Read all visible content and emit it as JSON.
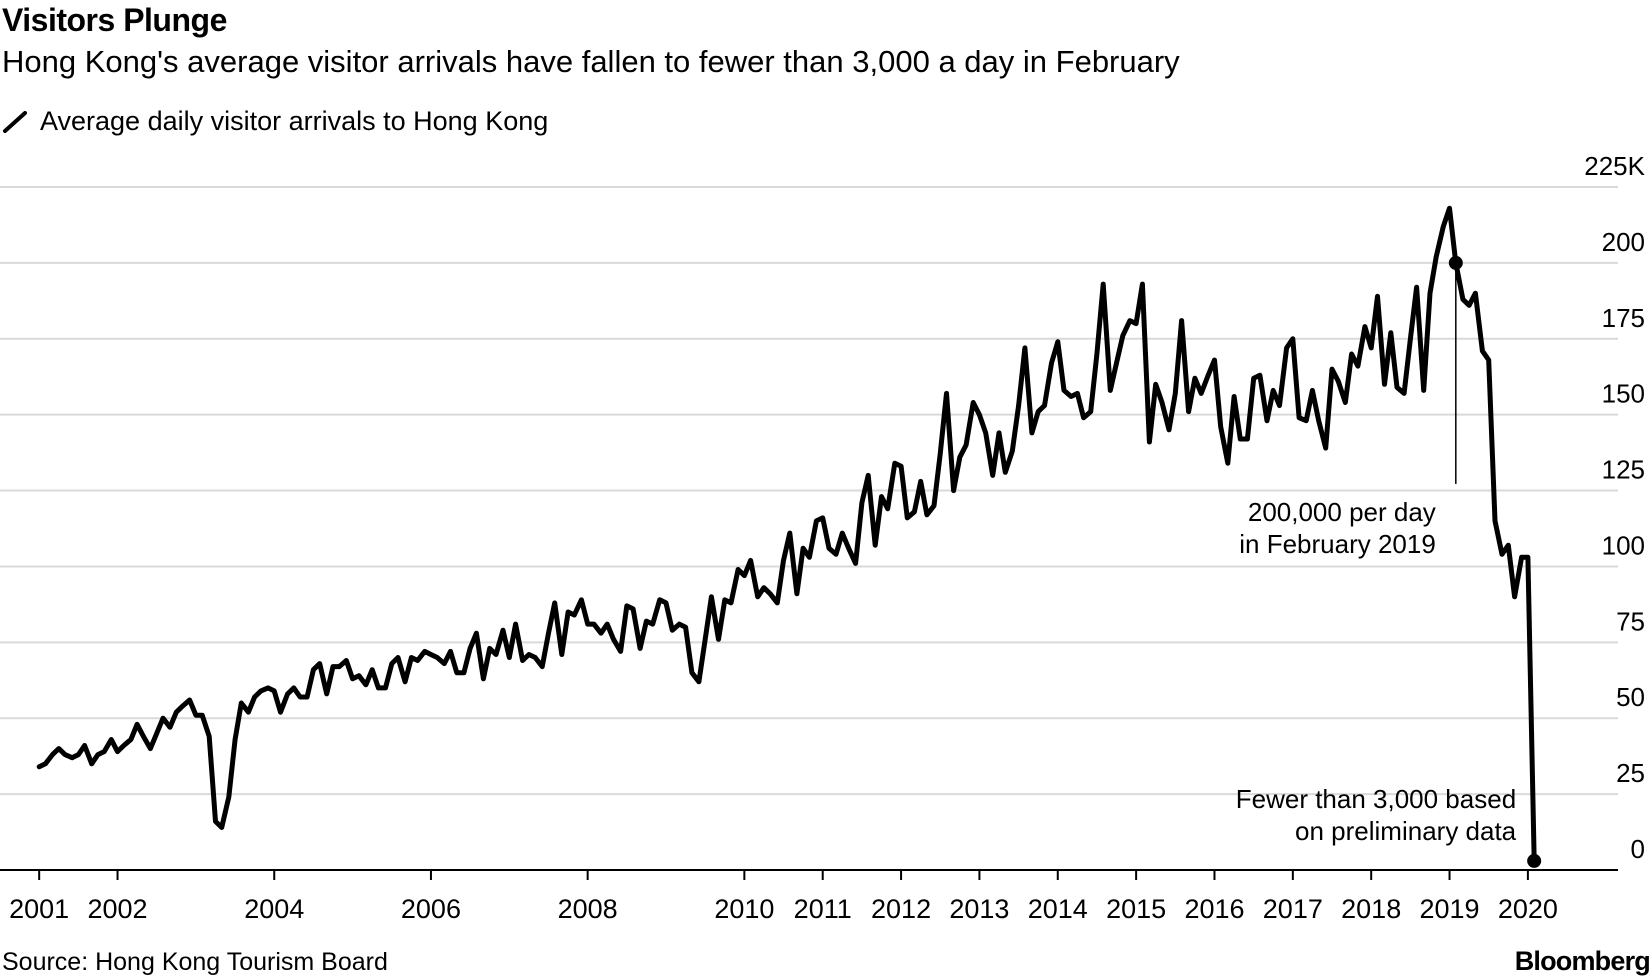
{
  "chart_data": {
    "type": "line",
    "title": "Visitors Plunge",
    "subtitle": "Hong Kong's average visitor arrivals have fallen to fewer than 3,000 a day in February",
    "legend": [
      "Average daily visitor arrivals to Hong Kong"
    ],
    "legend_position": "top-left",
    "ylabel": "",
    "xlabel": "",
    "ylim": [
      0,
      225
    ],
    "y_ticks": [
      {
        "value": 0,
        "label": "0"
      },
      {
        "value": 25,
        "label": "25"
      },
      {
        "value": 50,
        "label": "50"
      },
      {
        "value": 75,
        "label": "75"
      },
      {
        "value": 100,
        "label": "100"
      },
      {
        "value": 125,
        "label": "125"
      },
      {
        "value": 150,
        "label": "150"
      },
      {
        "value": 175,
        "label": "175"
      },
      {
        "value": 200,
        "label": "200"
      },
      {
        "value": 225,
        "label": "225K"
      }
    ],
    "x_ticks": [
      {
        "value": 2001,
        "label": "2001"
      },
      {
        "value": 2002,
        "label": "2002"
      },
      {
        "value": 2004,
        "label": "2004"
      },
      {
        "value": 2006,
        "label": "2006"
      },
      {
        "value": 2008,
        "label": "2008"
      },
      {
        "value": 2010,
        "label": "2010"
      },
      {
        "value": 2011,
        "label": "2011"
      },
      {
        "value": 2012,
        "label": "2012"
      },
      {
        "value": 2013,
        "label": "2013"
      },
      {
        "value": 2014,
        "label": "2014"
      },
      {
        "value": 2015,
        "label": "2015"
      },
      {
        "value": 2016,
        "label": "2016"
      },
      {
        "value": 2017,
        "label": "2017"
      },
      {
        "value": 2018,
        "label": "2018"
      },
      {
        "value": 2019,
        "label": "2019"
      },
      {
        "value": 2020,
        "label": "2020"
      }
    ],
    "grid": true,
    "series": [
      {
        "name": "Average daily visitor arrivals to Hong Kong",
        "color": "#000000",
        "points": [
          [
            2001.0,
            34
          ],
          [
            2001.08,
            35
          ],
          [
            2001.17,
            38
          ],
          [
            2001.25,
            40
          ],
          [
            2001.33,
            38
          ],
          [
            2001.42,
            37
          ],
          [
            2001.5,
            38
          ],
          [
            2001.58,
            41
          ],
          [
            2001.67,
            35
          ],
          [
            2001.75,
            38
          ],
          [
            2001.83,
            39
          ],
          [
            2001.92,
            43
          ],
          [
            2002.0,
            39
          ],
          [
            2002.08,
            41
          ],
          [
            2002.17,
            43
          ],
          [
            2002.25,
            48
          ],
          [
            2002.33,
            44
          ],
          [
            2002.42,
            40
          ],
          [
            2002.5,
            45
          ],
          [
            2002.58,
            50
          ],
          [
            2002.67,
            47
          ],
          [
            2002.75,
            52
          ],
          [
            2002.83,
            54
          ],
          [
            2002.92,
            56
          ],
          [
            2003.0,
            51
          ],
          [
            2003.08,
            51
          ],
          [
            2003.17,
            44
          ],
          [
            2003.25,
            16
          ],
          [
            2003.33,
            14
          ],
          [
            2003.42,
            24
          ],
          [
            2003.5,
            43
          ],
          [
            2003.58,
            55
          ],
          [
            2003.67,
            52
          ],
          [
            2003.75,
            57
          ],
          [
            2003.83,
            59
          ],
          [
            2003.92,
            60
          ],
          [
            2004.0,
            59
          ],
          [
            2004.08,
            52
          ],
          [
            2004.17,
            58
          ],
          [
            2004.25,
            60
          ],
          [
            2004.33,
            57
          ],
          [
            2004.42,
            57
          ],
          [
            2004.5,
            66
          ],
          [
            2004.58,
            68
          ],
          [
            2004.67,
            58
          ],
          [
            2004.75,
            67
          ],
          [
            2004.83,
            67
          ],
          [
            2004.92,
            69
          ],
          [
            2005.0,
            63
          ],
          [
            2005.08,
            64
          ],
          [
            2005.17,
            61
          ],
          [
            2005.25,
            66
          ],
          [
            2005.33,
            60
          ],
          [
            2005.42,
            60
          ],
          [
            2005.5,
            68
          ],
          [
            2005.58,
            70
          ],
          [
            2005.67,
            62
          ],
          [
            2005.75,
            70
          ],
          [
            2005.83,
            69
          ],
          [
            2005.92,
            72
          ],
          [
            2006.0,
            71
          ],
          [
            2006.08,
            70
          ],
          [
            2006.17,
            68
          ],
          [
            2006.25,
            72
          ],
          [
            2006.33,
            65
          ],
          [
            2006.42,
            65
          ],
          [
            2006.5,
            73
          ],
          [
            2006.58,
            78
          ],
          [
            2006.67,
            63
          ],
          [
            2006.75,
            73
          ],
          [
            2006.83,
            71
          ],
          [
            2006.92,
            79
          ],
          [
            2007.0,
            70
          ],
          [
            2007.08,
            81
          ],
          [
            2007.17,
            69
          ],
          [
            2007.25,
            71
          ],
          [
            2007.33,
            70
          ],
          [
            2007.42,
            67
          ],
          [
            2007.5,
            78
          ],
          [
            2007.58,
            88
          ],
          [
            2007.67,
            71
          ],
          [
            2007.75,
            85
          ],
          [
            2007.83,
            84
          ],
          [
            2007.92,
            89
          ],
          [
            2008.0,
            81
          ],
          [
            2008.08,
            81
          ],
          [
            2008.17,
            78
          ],
          [
            2008.25,
            81
          ],
          [
            2008.33,
            76
          ],
          [
            2008.42,
            72
          ],
          [
            2008.5,
            87
          ],
          [
            2008.58,
            86
          ],
          [
            2008.67,
            73
          ],
          [
            2008.75,
            82
          ],
          [
            2008.83,
            81
          ],
          [
            2008.92,
            89
          ],
          [
            2009.0,
            88
          ],
          [
            2009.08,
            79
          ],
          [
            2009.17,
            81
          ],
          [
            2009.25,
            80
          ],
          [
            2009.33,
            65
          ],
          [
            2009.42,
            62
          ],
          [
            2009.5,
            76
          ],
          [
            2009.58,
            90
          ],
          [
            2009.67,
            76
          ],
          [
            2009.75,
            89
          ],
          [
            2009.83,
            88
          ],
          [
            2009.92,
            99
          ],
          [
            2010.0,
            97
          ],
          [
            2010.08,
            102
          ],
          [
            2010.17,
            90
          ],
          [
            2010.25,
            93
          ],
          [
            2010.33,
            91
          ],
          [
            2010.42,
            88
          ],
          [
            2010.5,
            102
          ],
          [
            2010.58,
            111
          ],
          [
            2010.67,
            91
          ],
          [
            2010.75,
            106
          ],
          [
            2010.83,
            103
          ],
          [
            2010.92,
            115
          ],
          [
            2011.0,
            116
          ],
          [
            2011.08,
            106
          ],
          [
            2011.17,
            104
          ],
          [
            2011.25,
            111
          ],
          [
            2011.33,
            106
          ],
          [
            2011.42,
            101
          ],
          [
            2011.5,
            121
          ],
          [
            2011.58,
            130
          ],
          [
            2011.67,
            107
          ],
          [
            2011.75,
            123
          ],
          [
            2011.83,
            119
          ],
          [
            2011.92,
            134
          ],
          [
            2012.0,
            133
          ],
          [
            2012.08,
            116
          ],
          [
            2012.17,
            118
          ],
          [
            2012.25,
            128
          ],
          [
            2012.33,
            117
          ],
          [
            2012.42,
            120
          ],
          [
            2012.5,
            137
          ],
          [
            2012.58,
            157
          ],
          [
            2012.67,
            125
          ],
          [
            2012.75,
            136
          ],
          [
            2012.83,
            140
          ],
          [
            2012.92,
            154
          ],
          [
            2013.0,
            150
          ],
          [
            2013.08,
            144
          ],
          [
            2013.17,
            130
          ],
          [
            2013.25,
            144
          ],
          [
            2013.33,
            131
          ],
          [
            2013.42,
            138
          ],
          [
            2013.5,
            153
          ],
          [
            2013.58,
            172
          ],
          [
            2013.67,
            144
          ],
          [
            2013.75,
            151
          ],
          [
            2013.83,
            153
          ],
          [
            2013.92,
            167
          ],
          [
            2014.0,
            174
          ],
          [
            2014.08,
            158
          ],
          [
            2014.17,
            156
          ],
          [
            2014.25,
            157
          ],
          [
            2014.33,
            149
          ],
          [
            2014.42,
            151
          ],
          [
            2014.5,
            170
          ],
          [
            2014.58,
            193
          ],
          [
            2014.67,
            158
          ],
          [
            2014.75,
            167
          ],
          [
            2014.83,
            176
          ],
          [
            2014.92,
            181
          ],
          [
            2015.0,
            180
          ],
          [
            2015.08,
            193
          ],
          [
            2015.17,
            141
          ],
          [
            2015.25,
            160
          ],
          [
            2015.33,
            154
          ],
          [
            2015.42,
            145
          ],
          [
            2015.5,
            157
          ],
          [
            2015.58,
            181
          ],
          [
            2015.67,
            151
          ],
          [
            2015.75,
            162
          ],
          [
            2015.83,
            157
          ],
          [
            2015.92,
            163
          ],
          [
            2016.0,
            168
          ],
          [
            2016.08,
            146
          ],
          [
            2016.17,
            134
          ],
          [
            2016.25,
            156
          ],
          [
            2016.33,
            142
          ],
          [
            2016.42,
            142
          ],
          [
            2016.5,
            162
          ],
          [
            2016.58,
            163
          ],
          [
            2016.67,
            148
          ],
          [
            2016.75,
            158
          ],
          [
            2016.83,
            153
          ],
          [
            2016.92,
            172
          ],
          [
            2017.0,
            175
          ],
          [
            2017.08,
            149
          ],
          [
            2017.17,
            148
          ],
          [
            2017.25,
            158
          ],
          [
            2017.33,
            148
          ],
          [
            2017.42,
            139
          ],
          [
            2017.5,
            165
          ],
          [
            2017.58,
            161
          ],
          [
            2017.67,
            154
          ],
          [
            2017.75,
            170
          ],
          [
            2017.83,
            166
          ],
          [
            2017.92,
            179
          ],
          [
            2018.0,
            172
          ],
          [
            2018.08,
            189
          ],
          [
            2018.17,
            160
          ],
          [
            2018.25,
            177
          ],
          [
            2018.33,
            159
          ],
          [
            2018.42,
            157
          ],
          [
            2018.5,
            175
          ],
          [
            2018.58,
            192
          ],
          [
            2018.67,
            158
          ],
          [
            2018.75,
            190
          ],
          [
            2018.83,
            202
          ],
          [
            2018.92,
            212
          ],
          [
            2019.0,
            218
          ],
          [
            2019.08,
            200
          ],
          [
            2019.17,
            188
          ],
          [
            2019.25,
            186
          ],
          [
            2019.33,
            190
          ],
          [
            2019.42,
            171
          ],
          [
            2019.5,
            168
          ],
          [
            2019.58,
            115
          ],
          [
            2019.67,
            104
          ],
          [
            2019.75,
            107
          ],
          [
            2019.83,
            90
          ],
          [
            2019.92,
            103
          ],
          [
            2020.0,
            103
          ],
          [
            2020.08,
            3
          ]
        ]
      }
    ],
    "markers": [
      {
        "x": 2019.08,
        "y": 200
      },
      {
        "x": 2020.08,
        "y": 3
      }
    ],
    "annotations": [
      {
        "id": "feb-2019",
        "lines": [
          "200,000 per day",
          "in February 2019"
        ],
        "x": 2019.08,
        "y": 200
      },
      {
        "id": "feb-2020",
        "lines": [
          "Fewer than 3,000 based",
          "on preliminary data"
        ],
        "x": 2020.08,
        "y": 3
      }
    ],
    "source": "Source: Hong Kong Tourism Board",
    "brand": "Bloomberg"
  }
}
